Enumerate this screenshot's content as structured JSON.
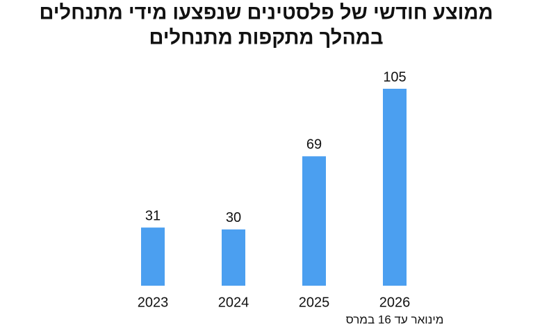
{
  "chart_data": {
    "type": "bar",
    "title": [
      "ממוצע חודשי של פלסטינים שנפצעו מידי מתנחלים",
      "במהלך מתקפות מתנחלים"
    ],
    "categories": [
      "2023",
      "2024",
      "2025",
      "2026"
    ],
    "values": [
      31,
      30,
      69,
      105
    ],
    "color": "#4b9ff0",
    "annotation": "מינואר עד 16 במרס"
  }
}
